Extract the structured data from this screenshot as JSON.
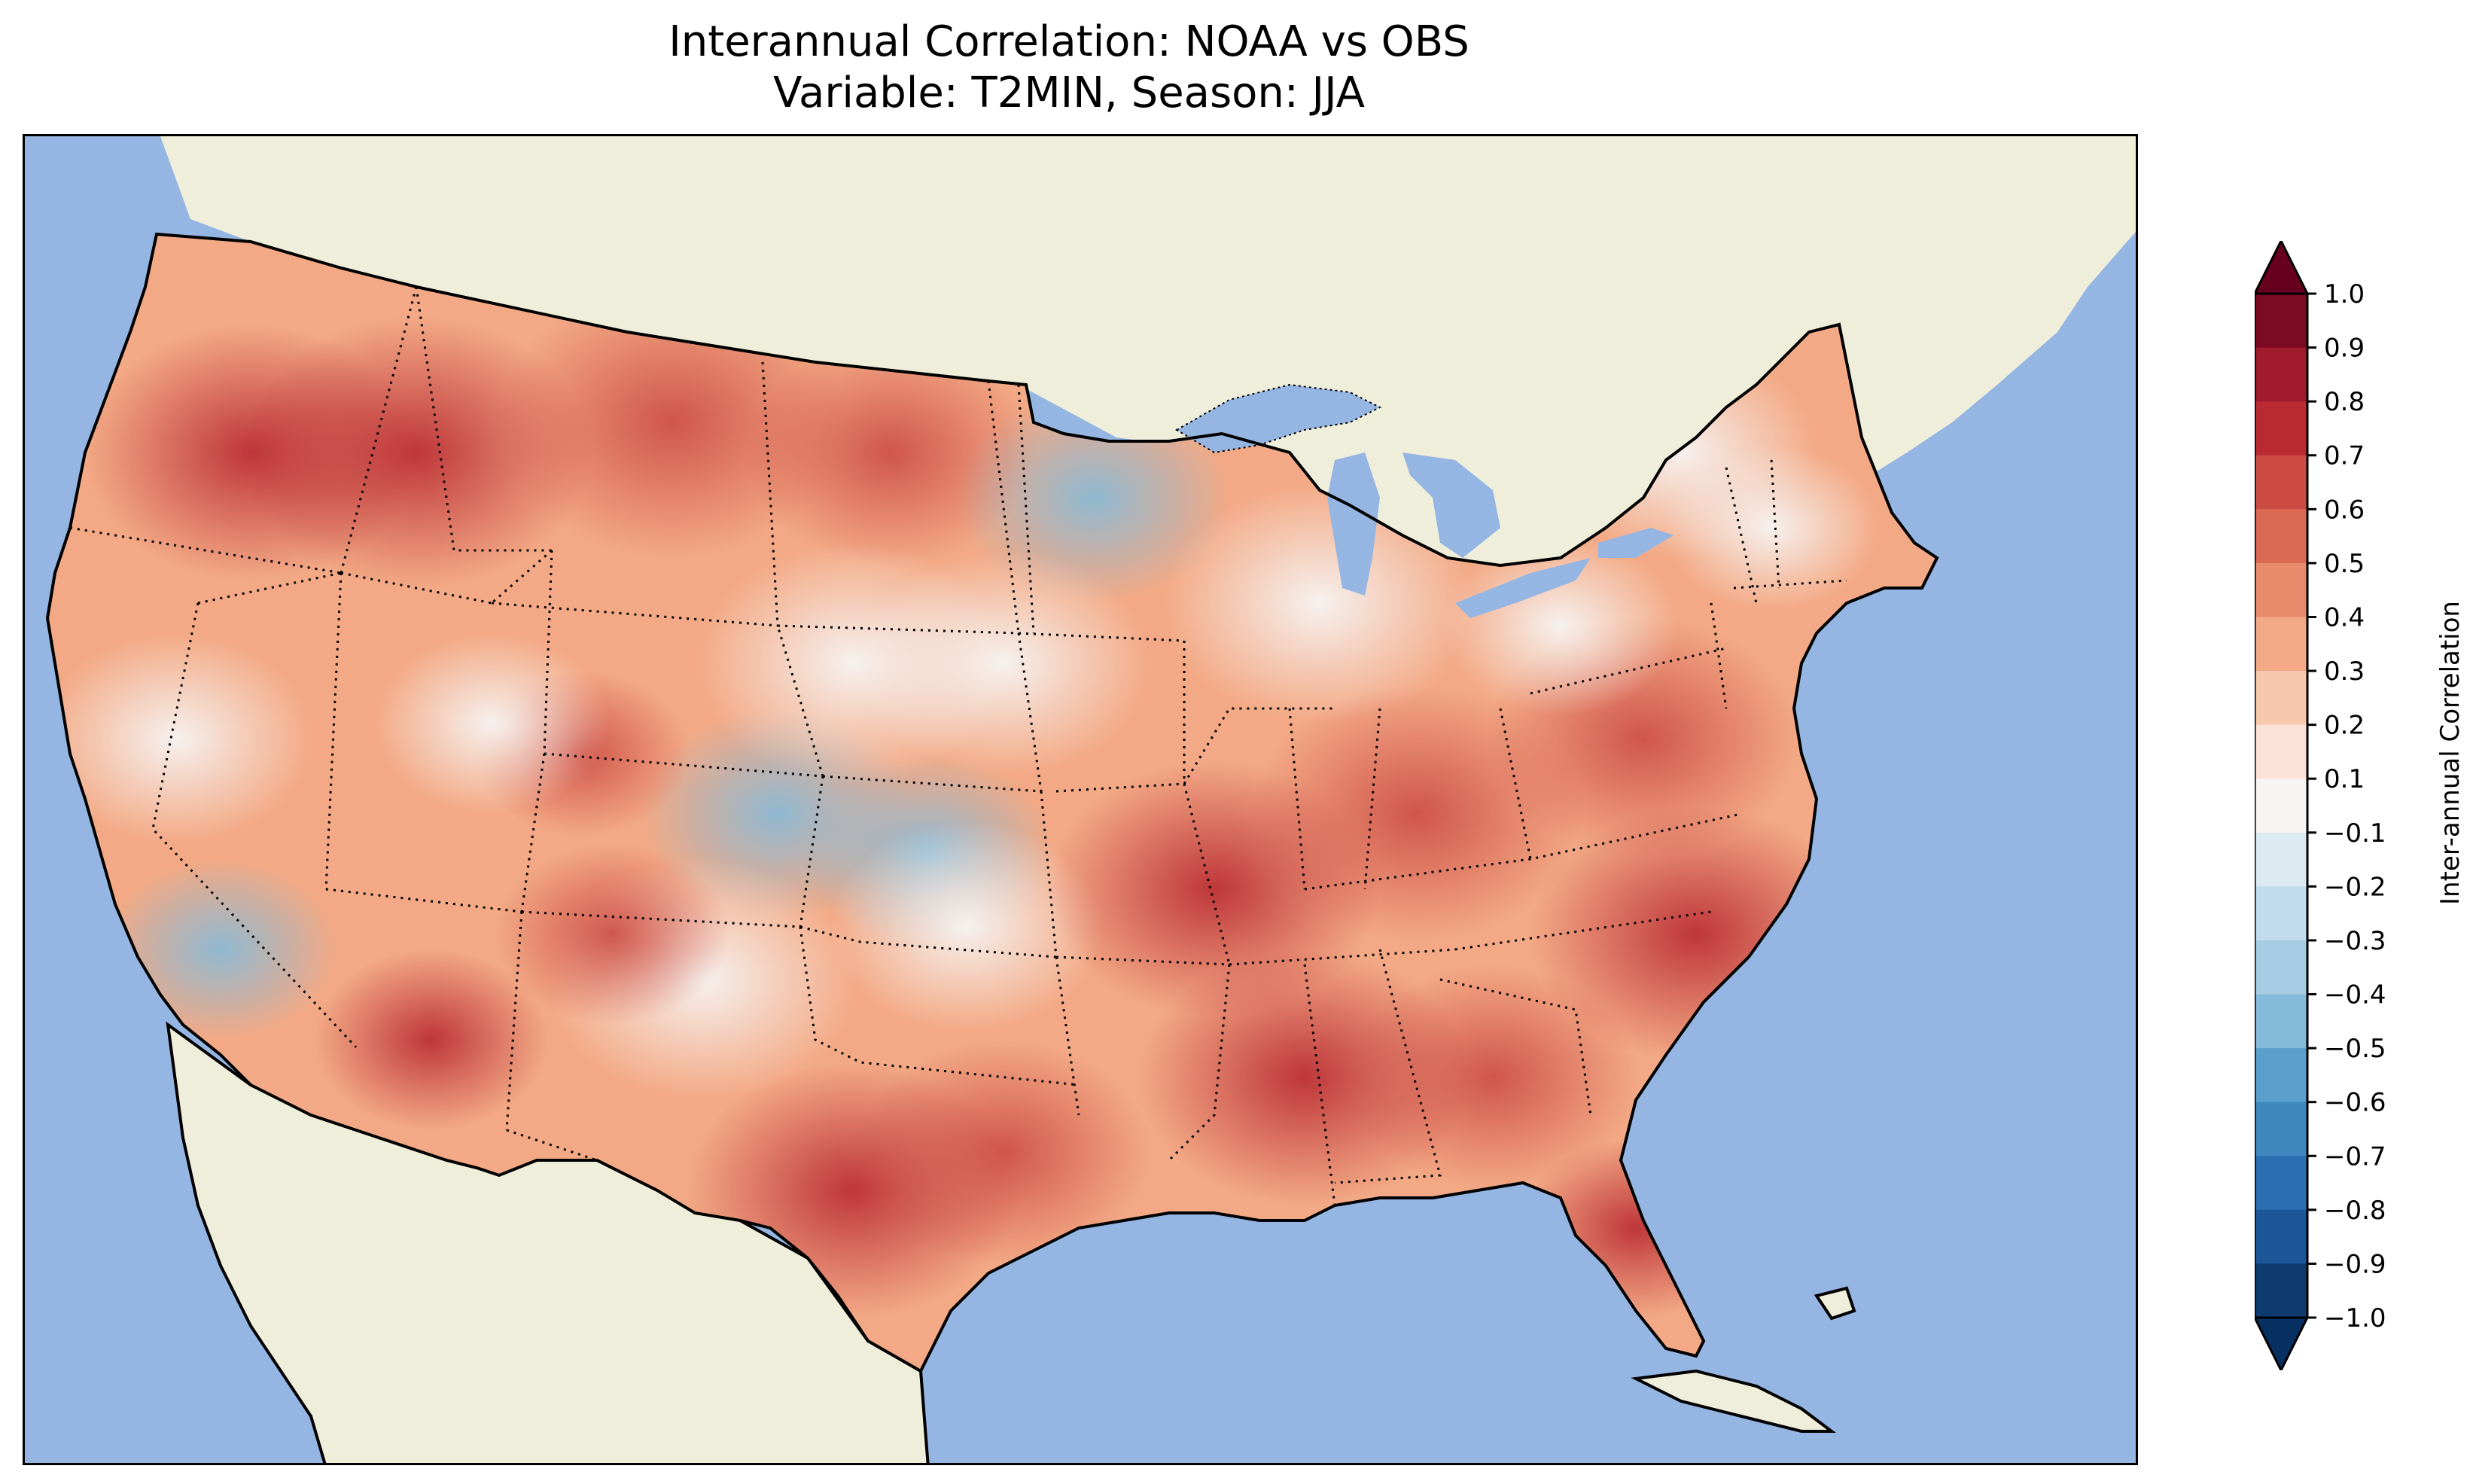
{
  "title": {
    "line1": "Interannual Correlation: NOAA vs OBS",
    "line2": "Variable: T2MIN, Season: JJA"
  },
  "map": {
    "ocean_color": "#95b5e2",
    "land_color": "#efeedb",
    "us_region": "Contiguous United States"
  },
  "colorbar": {
    "label": "Inter-annual Correlation",
    "ticks": [
      "1.0",
      "0.9",
      "0.8",
      "0.7",
      "0.6",
      "0.5",
      "0.4",
      "0.3",
      "0.2",
      "0.1",
      "−0.1",
      "−0.2",
      "−0.3",
      "−0.4",
      "−0.5",
      "−0.6",
      "−0.7",
      "−0.8",
      "−0.9",
      "−1.0"
    ],
    "colors_top_to_bottom": [
      "#7b0a22",
      "#9f1a2c",
      "#b92a32",
      "#cc4c44",
      "#db6953",
      "#e88a6c",
      "#f3a985",
      "#f7c7ae",
      "#fae2d6",
      "#f6f5f4",
      "#dceaf2",
      "#c1dcec",
      "#a6cde3",
      "#84bbda",
      "#5a9fcb",
      "#3f88bf",
      "#2a6fb1",
      "#1c5598",
      "#0d3b6e"
    ],
    "extend_max_color": "#67001f",
    "extend_min_color": "#053061"
  },
  "chart_data": {
    "type": "heatmap",
    "title": "Interannual Correlation: NOAA vs OBS",
    "subtitle": "Variable: T2MIN, Season: JJA",
    "colorbar_label": "Inter-annual Correlation",
    "value_range": [
      -1.0,
      1.0
    ],
    "level_step": 0.1
  }
}
